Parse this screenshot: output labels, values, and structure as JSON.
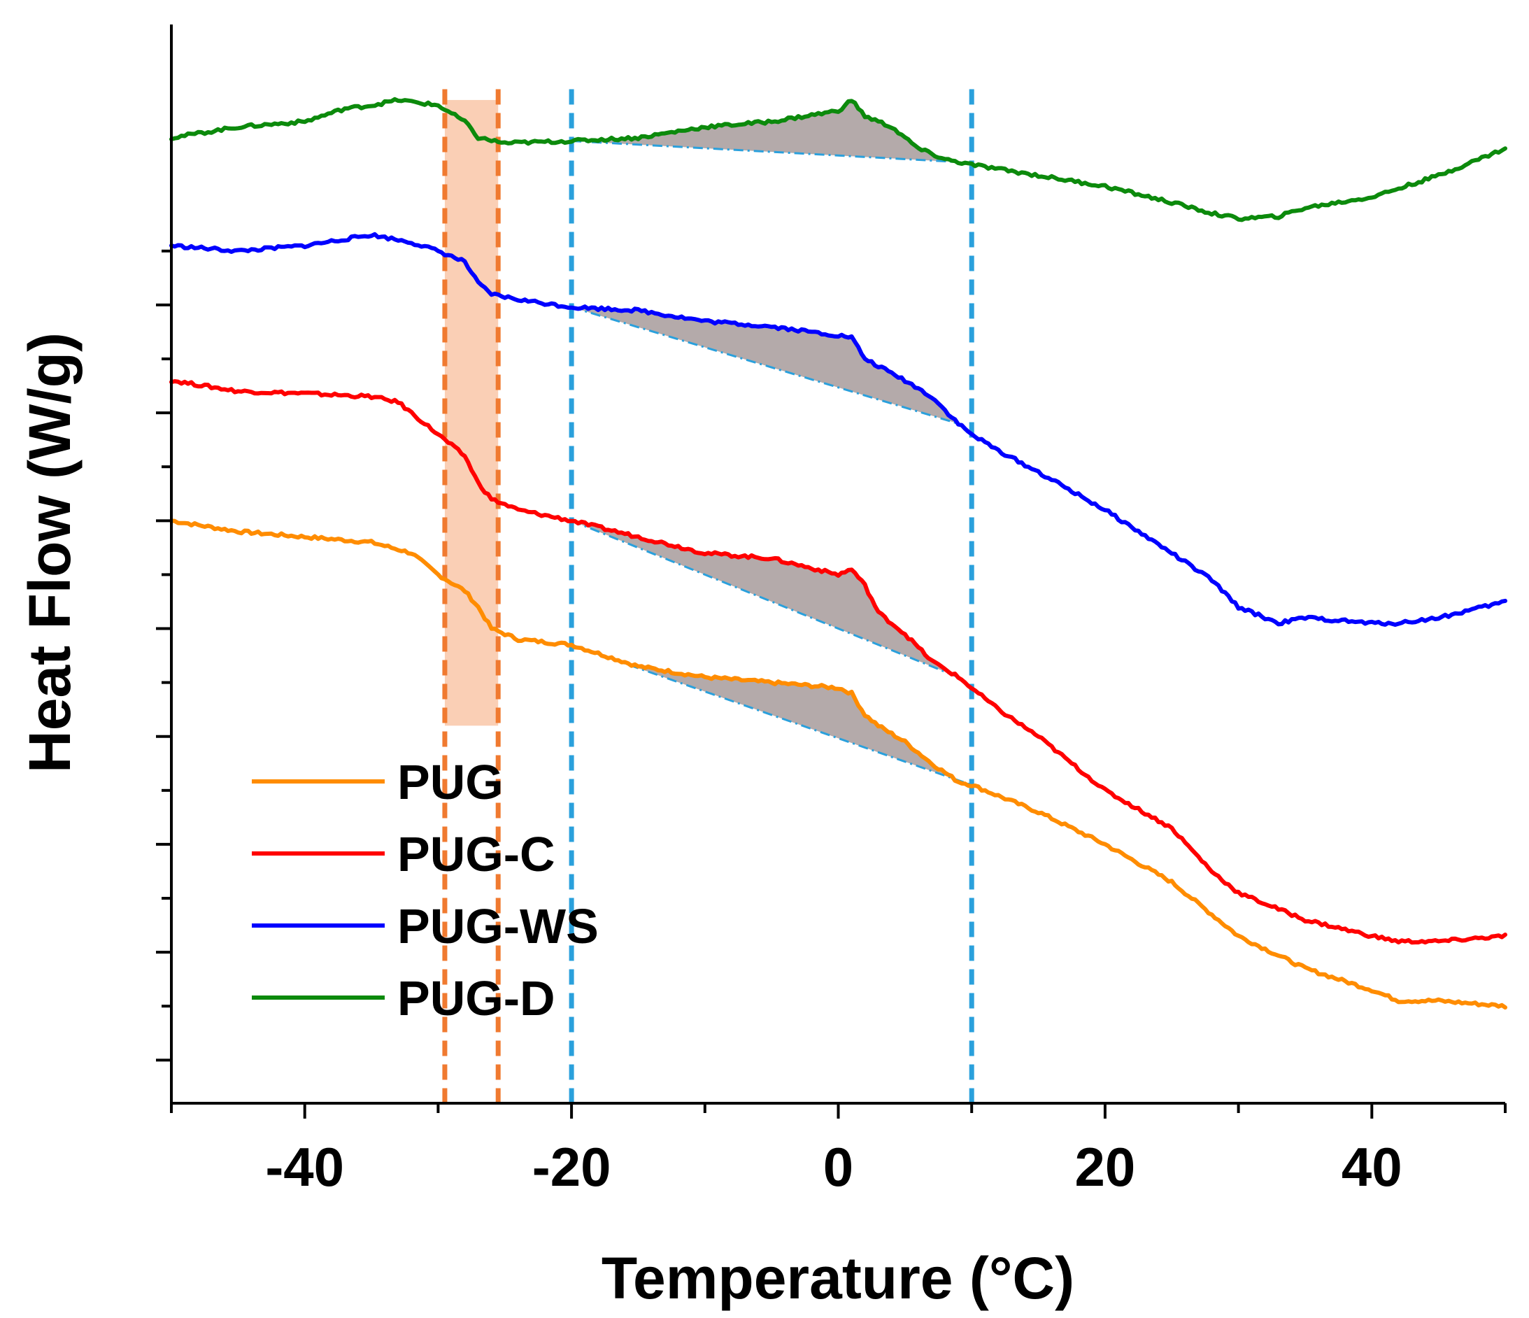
{
  "chart_data": {
    "type": "line",
    "xlabel": "Temperature (°C)",
    "ylabel": "Heat Flow (W/g)",
    "xlim": [
      -50,
      50
    ],
    "ylim": [
      0,
      10
    ],
    "x_ticks": [
      -40,
      -20,
      0,
      20,
      40
    ],
    "x_tick_labels": [
      "-40",
      "-20",
      "0",
      "20",
      "40"
    ],
    "y_tick_labels_shown": false,
    "grid": false,
    "legend_position": "bottom-left",
    "series": [
      {
        "name": "PUG",
        "color": "#ff8c00",
        "points": [
          [
            -50,
            5.4
          ],
          [
            -45,
            5.3
          ],
          [
            -40,
            5.25
          ],
          [
            -35,
            5.2
          ],
          [
            -32,
            5.1
          ],
          [
            -30,
            4.9
          ],
          [
            -28,
            4.75
          ],
          [
            -27,
            4.6
          ],
          [
            -26,
            4.4
          ],
          [
            -24,
            4.3
          ],
          [
            -20,
            4.25
          ],
          [
            -15,
            4.05
          ],
          [
            -10,
            3.95
          ],
          [
            -5,
            3.9
          ],
          [
            0,
            3.85
          ],
          [
            1,
            3.8
          ],
          [
            2,
            3.6
          ],
          [
            3,
            3.5
          ],
          [
            5,
            3.35
          ],
          [
            7,
            3.15
          ],
          [
            9,
            2.98
          ],
          [
            10,
            2.95
          ],
          [
            12,
            2.85
          ],
          [
            15,
            2.7
          ],
          [
            20,
            2.4
          ],
          [
            25,
            2.05
          ],
          [
            28,
            1.75
          ],
          [
            30,
            1.55
          ],
          [
            35,
            1.25
          ],
          [
            40,
            1.05
          ],
          [
            42,
            0.95
          ],
          [
            45,
            0.95
          ],
          [
            50,
            0.9
          ]
        ]
      },
      {
        "name": "PUG-C",
        "color": "#ff0000",
        "points": [
          [
            -50,
            6.7
          ],
          [
            -45,
            6.6
          ],
          [
            -40,
            6.58
          ],
          [
            -35,
            6.55
          ],
          [
            -33,
            6.5
          ],
          [
            -32,
            6.4
          ],
          [
            -30,
            6.2
          ],
          [
            -28,
            6.0
          ],
          [
            -27,
            5.75
          ],
          [
            -26,
            5.6
          ],
          [
            -24,
            5.5
          ],
          [
            -20,
            5.4
          ],
          [
            -15,
            5.25
          ],
          [
            -10,
            5.1
          ],
          [
            -5,
            5.05
          ],
          [
            0,
            4.9
          ],
          [
            1,
            4.95
          ],
          [
            2,
            4.8
          ],
          [
            3,
            4.55
          ],
          [
            5,
            4.35
          ],
          [
            7,
            4.1
          ],
          [
            9,
            3.95
          ],
          [
            10,
            3.85
          ],
          [
            12,
            3.65
          ],
          [
            15,
            3.4
          ],
          [
            20,
            2.9
          ],
          [
            25,
            2.55
          ],
          [
            28,
            2.15
          ],
          [
            30,
            1.95
          ],
          [
            35,
            1.7
          ],
          [
            40,
            1.55
          ],
          [
            42,
            1.5
          ],
          [
            45,
            1.5
          ],
          [
            50,
            1.55
          ]
        ]
      },
      {
        "name": "PUG-WS",
        "color": "#0000ff",
        "points": [
          [
            -50,
            7.95
          ],
          [
            -45,
            7.9
          ],
          [
            -40,
            7.95
          ],
          [
            -35,
            8.05
          ],
          [
            -32,
            7.98
          ],
          [
            -30,
            7.9
          ],
          [
            -28,
            7.8
          ],
          [
            -27,
            7.6
          ],
          [
            -26,
            7.5
          ],
          [
            -24,
            7.45
          ],
          [
            -20,
            7.38
          ],
          [
            -15,
            7.35
          ],
          [
            -10,
            7.25
          ],
          [
            -5,
            7.2
          ],
          [
            -2,
            7.15
          ],
          [
            1,
            7.1
          ],
          [
            2,
            6.9
          ],
          [
            5,
            6.7
          ],
          [
            7,
            6.55
          ],
          [
            9,
            6.3
          ],
          [
            10,
            6.2
          ],
          [
            12,
            6.05
          ],
          [
            15,
            5.85
          ],
          [
            20,
            5.5
          ],
          [
            25,
            5.1
          ],
          [
            28,
            4.85
          ],
          [
            30,
            4.6
          ],
          [
            33,
            4.45
          ],
          [
            35,
            4.5
          ],
          [
            40,
            4.45
          ],
          [
            42,
            4.45
          ],
          [
            45,
            4.5
          ],
          [
            50,
            4.65
          ]
        ]
      },
      {
        "name": "PUG-D",
        "color": "#0c8a0c",
        "points": [
          [
            -50,
            8.95
          ],
          [
            -45,
            9.05
          ],
          [
            -40,
            9.1
          ],
          [
            -37,
            9.22
          ],
          [
            -35,
            9.25
          ],
          [
            -33,
            9.3
          ],
          [
            -30,
            9.25
          ],
          [
            -28,
            9.1
          ],
          [
            -27,
            8.95
          ],
          [
            -25,
            8.9
          ],
          [
            -20,
            8.92
          ],
          [
            -15,
            8.95
          ],
          [
            -10,
            9.05
          ],
          [
            -5,
            9.1
          ],
          [
            0,
            9.2
          ],
          [
            1,
            9.3
          ],
          [
            2,
            9.15
          ],
          [
            4,
            9.05
          ],
          [
            6,
            8.85
          ],
          [
            8,
            8.75
          ],
          [
            10,
            8.7
          ],
          [
            15,
            8.6
          ],
          [
            20,
            8.5
          ],
          [
            25,
            8.35
          ],
          [
            28,
            8.25
          ],
          [
            30,
            8.2
          ],
          [
            33,
            8.22
          ],
          [
            35,
            8.3
          ],
          [
            40,
            8.4
          ],
          [
            45,
            8.6
          ],
          [
            50,
            8.85
          ]
        ]
      }
    ],
    "vertical_markers": [
      {
        "x": -29.5,
        "color": "#f07a30"
      },
      {
        "x": -25.5,
        "color": "#f07a30"
      },
      {
        "x": -20,
        "color": "#2aa0dc"
      },
      {
        "x": 10,
        "color": "#2aa0dc"
      }
    ],
    "shaded_band": {
      "x": [
        -29.5,
        -25.5
      ],
      "y": [
        3.5,
        9.3
      ],
      "color": "#f9c7a8"
    },
    "shaded_peaks": [
      {
        "series": "PUG",
        "x": [
          -20,
          10
        ],
        "color": "#b4aaaa"
      },
      {
        "series": "PUG-C",
        "x": [
          -20,
          9
        ],
        "color": "#b4aaaa"
      },
      {
        "series": "PUG-WS",
        "x": [
          -20,
          9
        ],
        "color": "#b4aaaa"
      },
      {
        "series": "PUG-D",
        "x": [
          -20,
          9
        ],
        "color": "#b4aaaa"
      }
    ]
  }
}
